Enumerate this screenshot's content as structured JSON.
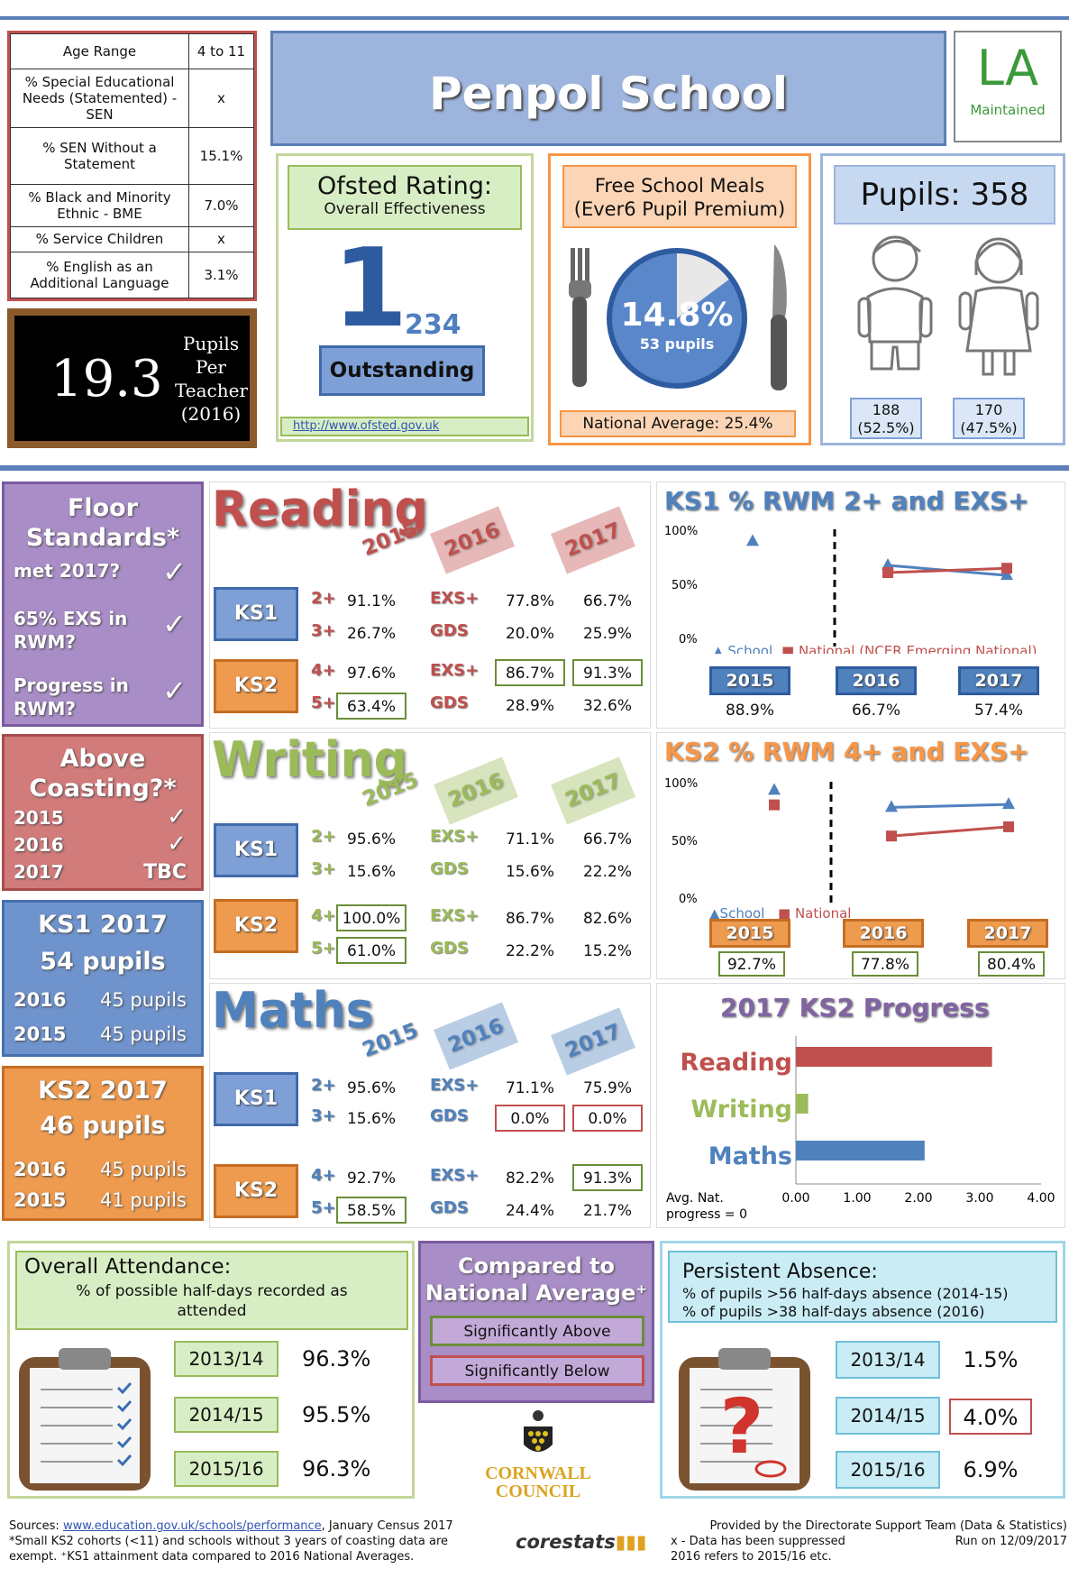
{
  "info_table": [
    {
      "label": "Age Range",
      "value": "4 to 11"
    },
    {
      "label": "% Special Educational Needs (Statemented) - SEN",
      "value": "x"
    },
    {
      "label": "% SEN Without a Statement",
      "value": "15.1%"
    },
    {
      "label": "% Black and Minority Ethnic - BME",
      "value": "7.0%"
    },
    {
      "label": "% Service Children",
      "value": "x"
    },
    {
      "label": "% English as an Additional Language",
      "value": "3.1%"
    }
  ],
  "school_name": "Penpol School",
  "la": {
    "big": "LA",
    "small": "Maintained"
  },
  "ppt": {
    "value": "19.3",
    "l1": "Pupils",
    "l2": "Per",
    "l3": "Teacher",
    "l4": "(2016)"
  },
  "ofsted": {
    "title": "Ofsted Rating:",
    "subtitle": "Overall Effectiveness",
    "grade": "1",
    "others": "234",
    "label": "Outstanding",
    "link": "http://www.ofsted.gov.uk"
  },
  "fsm": {
    "title": "Free School Meals",
    "subtitle": "(Ever6 Pupil Premium)",
    "percent": "14.8%",
    "pupils": "53 pupils",
    "national": "National Average: 25.4%",
    "fraction": 0.148
  },
  "pupils": {
    "title": "Pupils: 358",
    "boys_n": "188",
    "boys_p": "(52.5%)",
    "girls_n": "170",
    "girls_p": "(47.5%)"
  },
  "floor": {
    "title1": "Floor",
    "title2": "Standards*",
    "r1": "met 2017?",
    "r2a": "65% EXS in",
    "r2b": "RWM?",
    "r3a": "Progress in",
    "r3b": "RWM?",
    "tick": "✓"
  },
  "coast": {
    "title1": "Above",
    "title2": "Coasting?*",
    "y1": "2015",
    "y2": "2016",
    "y3": "2017",
    "v3": "TBC",
    "tick": "✓"
  },
  "ks1p": {
    "title": "KS1 2017",
    "pupils": "54 pupils",
    "y1": "2016",
    "v1": "45 pupils",
    "y2": "2015",
    "v2": "45 pupils"
  },
  "ks2p": {
    "title": "KS2 2017",
    "pupils": "46 pupils",
    "y1": "2016",
    "v1": "45 pupils",
    "y2": "2015",
    "v2": "41 pupils"
  },
  "years": [
    "2015",
    "2016",
    "2017"
  ],
  "ks": [
    "KS1",
    "KS2"
  ],
  "reading": {
    "name": "Reading",
    "lv": [
      "2+",
      "3+",
      "4+",
      "5+"
    ],
    "lv2": [
      "EXS+",
      "GDS",
      "EXS+",
      "GDS"
    ],
    "v15": [
      "91.1%",
      "26.7%",
      "97.6%",
      "63.4%"
    ],
    "v16": [
      "77.8%",
      "20.0%",
      "86.7%",
      "28.9%"
    ],
    "v17": [
      "66.7%",
      "25.9%",
      "91.3%",
      "32.6%"
    ]
  },
  "writing": {
    "name": "Writing",
    "lv": [
      "2+",
      "3+",
      "4+",
      "5+"
    ],
    "lv2": [
      "EXS+",
      "GDS",
      "EXS+",
      "GDS"
    ],
    "v15": [
      "95.6%",
      "15.6%",
      "100.0%",
      "61.0%"
    ],
    "v16": [
      "71.1%",
      "15.6%",
      "86.7%",
      "22.2%"
    ],
    "v17": [
      "66.7%",
      "22.2%",
      "82.6%",
      "15.2%"
    ]
  },
  "maths": {
    "name": "Maths",
    "lv": [
      "2+",
      "3+",
      "4+",
      "5+"
    ],
    "lv2": [
      "EXS+",
      "GDS",
      "EXS+",
      "GDS"
    ],
    "v15": [
      "95.6%",
      "15.6%",
      "92.7%",
      "58.5%"
    ],
    "v16": [
      "71.1%",
      "0.0%",
      "82.2%",
      "24.4%"
    ],
    "v17": [
      "75.9%",
      "0.0%",
      "91.3%",
      "21.7%"
    ]
  },
  "ks1chart": {
    "title": "KS1 % RWM 2+ and EXS+",
    "legend_school": "School",
    "legend_nat": "National (NCER Emerging National)",
    "vals": [
      "88.9%",
      "66.7%",
      "57.4%"
    ]
  },
  "ks2chart": {
    "title": "KS2 % RWM 4+ and EXS+",
    "legend_school": "School",
    "legend_nat": "National",
    "vals": [
      "92.7%",
      "77.8%",
      "80.4%"
    ]
  },
  "progress": {
    "title": "2017 KS2 Progress",
    "labels": [
      "Reading",
      "Writing",
      "Maths"
    ],
    "ticks": [
      "0.00",
      "1.00",
      "2.00",
      "3.00",
      "4.00"
    ],
    "note1": "Avg. Nat.",
    "note2": "progress = 0"
  },
  "chart_data": [
    {
      "type": "line",
      "title": "KS1 % RWM 2+ and EXS+",
      "categories": [
        "2015",
        "2016",
        "2017"
      ],
      "ylim": [
        0,
        100
      ],
      "yticks": [
        "100%",
        "50%",
        "0%"
      ],
      "series": [
        {
          "name": "School",
          "values": [
            88.9,
            66.7,
            57.4
          ]
        },
        {
          "name": "National (NCER Emerging National)",
          "values": [
            null,
            60,
            64
          ]
        }
      ]
    },
    {
      "type": "line",
      "title": "KS2 % RWM 4+ and EXS+",
      "categories": [
        "2015",
        "2016",
        "2017"
      ],
      "ylim": [
        0,
        100
      ],
      "yticks": [
        "100%",
        "50%",
        "0%"
      ],
      "series": [
        {
          "name": "School",
          "values": [
            92.7,
            77.8,
            80.4
          ]
        },
        {
          "name": "National",
          "values": [
            80,
            53,
            61
          ]
        }
      ]
    },
    {
      "type": "bar",
      "title": "2017 KS2 Progress",
      "categories": [
        "Reading",
        "Writing",
        "Maths"
      ],
      "values": [
        3.2,
        0.2,
        2.1
      ],
      "xlim": [
        0,
        4
      ],
      "colors": [
        "#c0504d",
        "#9bbb59",
        "#4f81bd"
      ]
    }
  ],
  "attendance": {
    "title": "Overall Attendance:",
    "sub": "% of possible half-days recorded as attended",
    "years": [
      "2013/14",
      "2014/15",
      "2015/16"
    ],
    "vals": [
      "96.3%",
      "95.5%",
      "96.3%"
    ]
  },
  "compared": {
    "title1": "Compared to",
    "title2": "National Average⁺",
    "above": "Significantly Above",
    "below": "Significantly Below"
  },
  "council": {
    "l1": "CORNWALL",
    "l2": "COUNCIL"
  },
  "absence": {
    "title": "Persistent Absence:",
    "l1": "% of pupils >56 half-days absence (2014-15)",
    "l2": "% of pupils >38 half-days absence (2016)",
    "years": [
      "2013/14",
      "2014/15",
      "2015/16"
    ],
    "vals": [
      "1.5%",
      "4.0%",
      "6.9%"
    ]
  },
  "footer": {
    "sources_label": "Sources: ",
    "sources_link": "www.education.gov.uk/schools/performance",
    "sources_rest": ", January Census 2017",
    "l2": "*Small KS2 cohorts (<11) and schools without 3 years of coasting data are",
    "l3": "exempt. ⁺KS1 attainment data compared to 2016 National Averages.",
    "logo": "corestats",
    "r1": "Provided by the Directorate Support Team (Data & Statistics)",
    "r2": "x - Data has been suppressed",
    "r3": "Run on 12/09/2017",
    "r4": "2016 refers to 2015/16 etc."
  }
}
